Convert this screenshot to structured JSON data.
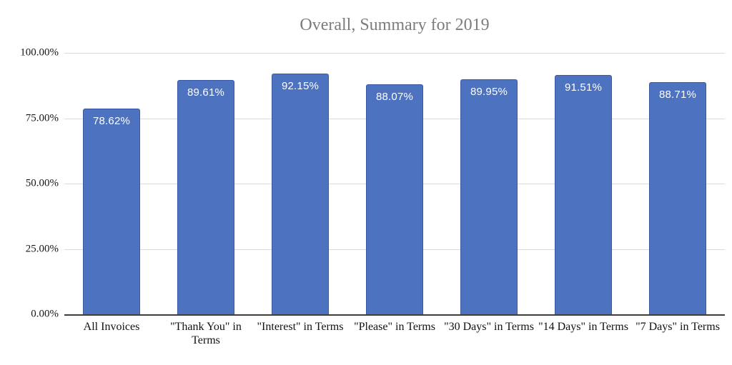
{
  "title": "Overall, Summary for 2019",
  "colors": {
    "background": "#ffffff",
    "bar_fill": "#4c72c0",
    "bar_border": "#3b58a5",
    "bar_value_text": "#ffffff",
    "title_text": "#7c7c7c",
    "axis_text": "#111111",
    "gridline": "#d9d9d9",
    "baseline": "#3c3c3c"
  },
  "chart_data": {
    "type": "bar",
    "title": "Overall, Summary for 2019",
    "categories": [
      "All Invoices",
      "\"Thank You\" in Terms",
      "\"Interest\" in Terms",
      "\"Please\" in Terms",
      "\"30 Days\" in Terms",
      "\"14 Days\" in Terms",
      "\"7 Days\" in Terms"
    ],
    "values": [
      78.62,
      89.61,
      92.15,
      88.07,
      89.95,
      91.51,
      88.71
    ],
    "value_labels": [
      "78.62%",
      "89.61%",
      "92.15%",
      "88.07%",
      "89.95%",
      "91.51%",
      "88.71%"
    ],
    "y_ticks": [
      "100.00%",
      "75.00%",
      "50.00%",
      "25.00%",
      "0.00%"
    ],
    "y_tick_values": [
      100,
      75,
      50,
      25,
      0
    ],
    "xlabel": "",
    "ylabel": "",
    "ylim": [
      0,
      100
    ],
    "grid": "horizontal",
    "legend": "none",
    "bar_color": "#4c72c0"
  }
}
